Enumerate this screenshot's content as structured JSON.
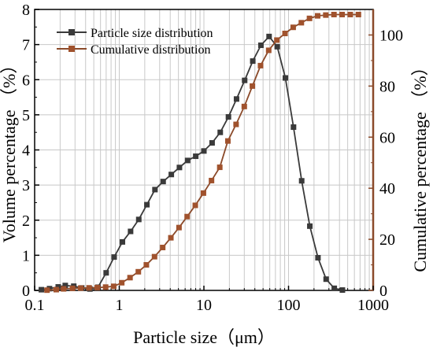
{
  "chart_data": {
    "type": "line",
    "xlabel": "Particle size（μm）",
    "ylabel_left": "Volume percentage （%）",
    "ylabel_right": "Cumulative percentage （%）",
    "x_scale": "log",
    "xlim": [
      0.1,
      1000
    ],
    "ylim_left": [
      0,
      8
    ],
    "ylim_right": [
      0,
      110
    ],
    "x_ticks": [
      0.1,
      1,
      10,
      100,
      1000
    ],
    "x_tick_labels": [
      "0.1",
      "1",
      "10",
      "100",
      "1000"
    ],
    "y_left_ticks": [
      0,
      1,
      2,
      3,
      4,
      5,
      6,
      7,
      8
    ],
    "y_left_tick_labels": [
      "0",
      "1",
      "2",
      "3",
      "4",
      "5",
      "6",
      "7",
      "8"
    ],
    "y_right_ticks": [
      0,
      20,
      40,
      60,
      80,
      100
    ],
    "y_right_tick_labels": [
      "0",
      "20",
      "40",
      "60",
      "80",
      "100"
    ],
    "grid": true,
    "legend_position": "top-left",
    "colors": {
      "left_axis": "#000000",
      "right_axis": "#8b4a2a",
      "grid": "#c8c8c8"
    },
    "series": [
      {
        "name": "Particle size distribution",
        "axis": "left",
        "color": "#3a3a3a",
        "marker": "square",
        "x": [
          0.12,
          0.15,
          0.19,
          0.23,
          0.29,
          0.36,
          0.45,
          0.56,
          0.7,
          0.87,
          1.09,
          1.36,
          1.7,
          2.12,
          2.64,
          3.3,
          4.12,
          5.14,
          6.42,
          8.01,
          10.0,
          12.5,
          15.6,
          19.5,
          24.3,
          30.3,
          37.8,
          47.2,
          58.9,
          73.5,
          91.8,
          114.5,
          143.0,
          178.5,
          222.8,
          278.1,
          347.1,
          433.2
        ],
        "y": [
          0.02,
          0.05,
          0.1,
          0.14,
          0.12,
          0.07,
          0.04,
          0.09,
          0.5,
          0.95,
          1.38,
          1.68,
          2.02,
          2.44,
          2.87,
          3.1,
          3.3,
          3.5,
          3.7,
          3.82,
          3.97,
          4.2,
          4.5,
          4.94,
          5.45,
          5.98,
          6.53,
          6.98,
          7.23,
          6.94,
          6.05,
          4.65,
          3.12,
          1.83,
          0.93,
          0.32,
          0.06,
          0.01
        ]
      },
      {
        "name": "Cumulative distribution",
        "axis": "right",
        "color": "#8b4a2a",
        "marker": "square",
        "x": [
          0.14,
          0.18,
          0.22,
          0.28,
          0.35,
          0.44,
          0.55,
          0.69,
          0.86,
          1.07,
          1.34,
          1.68,
          2.09,
          2.61,
          3.26,
          4.07,
          5.08,
          6.34,
          7.91,
          9.88,
          12.3,
          15.4,
          19.2,
          24.0,
          30.0,
          37.4,
          46.7,
          58.3,
          72.8,
          90.9,
          113.5,
          141.7,
          176.9,
          220.8,
          275.6,
          344.1,
          429.6,
          536.3,
          669.5
        ],
        "y": [
          0.1,
          0.3,
          0.6,
          0.8,
          0.9,
          1.0,
          1.1,
          1.3,
          1.6,
          3.0,
          5.0,
          7.3,
          10.0,
          13.2,
          16.8,
          20.6,
          24.6,
          28.9,
          33.3,
          38.1,
          43.0,
          48.2,
          58.5,
          65.0,
          72.0,
          80.0,
          88.0,
          94.0,
          98.0,
          100.6,
          103.0,
          104.8,
          106.5,
          107.5,
          107.8,
          108.0,
          108.0,
          108.0,
          108.0
        ]
      }
    ]
  }
}
